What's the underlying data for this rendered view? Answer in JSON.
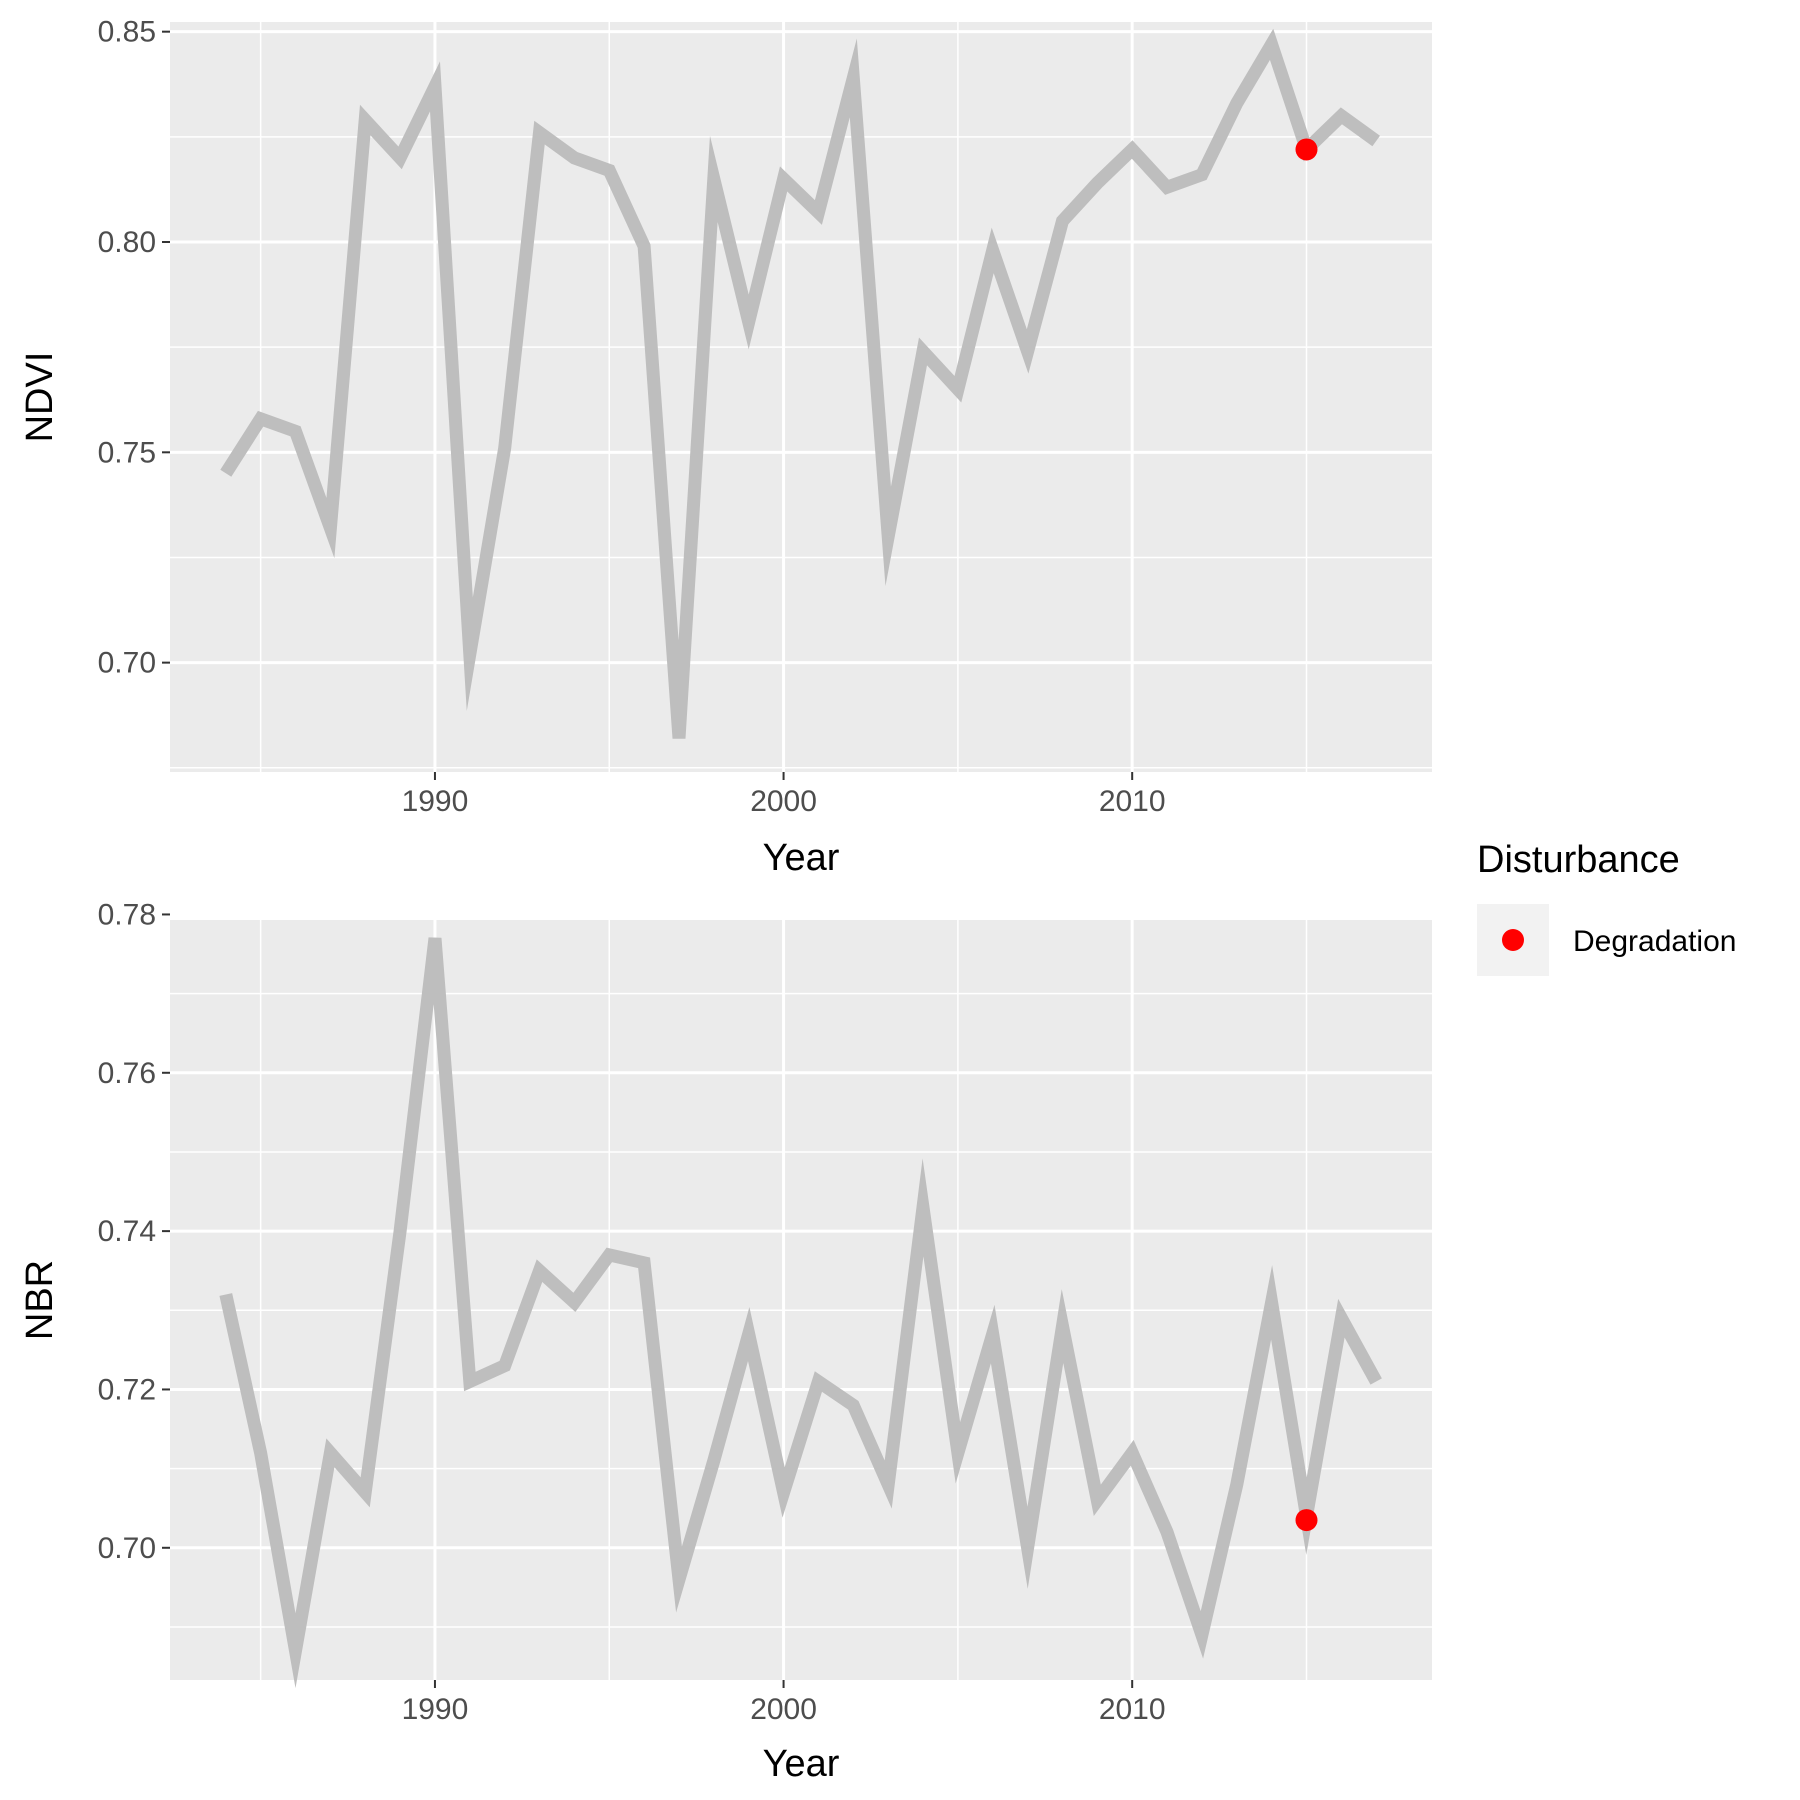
{
  "chart_data": [
    {
      "type": "line",
      "panel": "top",
      "xlabel": "Year",
      "ylabel": "NDVI",
      "xlim": [
        1982.4,
        2018.6
      ],
      "ylim": [
        0.674,
        0.8523
      ],
      "xticks": [
        1990,
        2000,
        2010
      ],
      "xtick_labels": [
        "1990",
        "2000",
        "2010"
      ],
      "yticks": [
        0.7,
        0.75,
        0.8,
        0.85
      ],
      "ytick_labels": [
        "0.70",
        "0.75",
        "0.80",
        "0.85"
      ],
      "grid": true,
      "series": [
        {
          "color": "#bebebe",
          "x": [
            1984,
            1985,
            1986,
            1987,
            1988,
            1989,
            1990,
            1991,
            1992,
            1993,
            1994,
            1995,
            1996,
            1997,
            1998,
            1999,
            2000,
            2001,
            2002,
            2003,
            2004,
            2005,
            2006,
            2007,
            2008,
            2009,
            2010,
            2011,
            2012,
            2013,
            2014,
            2015,
            2016,
            2017
          ],
          "y": [
            0.745,
            0.758,
            0.755,
            0.732,
            0.829,
            0.82,
            0.837,
            0.702,
            0.751,
            0.826,
            0.82,
            0.817,
            0.799,
            0.682,
            0.815,
            0.781,
            0.815,
            0.807,
            0.839,
            0.73,
            0.774,
            0.765,
            0.798,
            0.774,
            0.805,
            0.814,
            0.822,
            0.813,
            0.816,
            0.833,
            0.847,
            0.822,
            0.83,
            0.824
          ]
        }
      ],
      "points": [
        {
          "name": "Degradation",
          "color": "#ff0000",
          "x": 2015,
          "y": 0.822
        }
      ]
    },
    {
      "type": "line",
      "panel": "bottom",
      "xlabel": "Year",
      "ylabel": "NBR",
      "xlim": [
        1982.4,
        2018.6
      ],
      "ylim": [
        0.6833,
        0.7793
      ],
      "xticks": [
        1990,
        2000,
        2010
      ],
      "xtick_labels": [
        "1990",
        "2000",
        "2010"
      ],
      "yticks": [
        0.7,
        0.72,
        0.74,
        0.76,
        0.78
      ],
      "ytick_labels": [
        "0.70",
        "0.72",
        "0.74",
        "0.76",
        "0.78"
      ],
      "grid": true,
      "series": [
        {
          "color": "#bebebe",
          "x": [
            1984,
            1985,
            1986,
            1987,
            1988,
            1989,
            1990,
            1991,
            1992,
            1993,
            1994,
            1995,
            1996,
            1997,
            1998,
            1999,
            2000,
            2001,
            2002,
            2003,
            2004,
            2005,
            2006,
            2007,
            2008,
            2009,
            2010,
            2011,
            2012,
            2013,
            2014,
            2015,
            2016,
            2017
          ],
          "y": [
            0.732,
            0.712,
            0.687,
            0.712,
            0.707,
            0.74,
            0.777,
            0.721,
            0.723,
            0.735,
            0.731,
            0.737,
            0.736,
            0.696,
            0.711,
            0.727,
            0.707,
            0.721,
            0.718,
            0.708,
            0.743,
            0.712,
            0.727,
            0.7,
            0.728,
            0.706,
            0.712,
            0.702,
            0.689,
            0.708,
            0.731,
            0.704,
            0.729,
            0.721
          ]
        }
      ],
      "points": [
        {
          "name": "Degradation",
          "color": "#ff0000",
          "x": 2015,
          "y": 0.7035
        }
      ]
    }
  ],
  "legend": {
    "title": "Disturbance",
    "position": "right",
    "items": [
      {
        "label": "Degradation",
        "color": "#ff0000"
      }
    ]
  }
}
